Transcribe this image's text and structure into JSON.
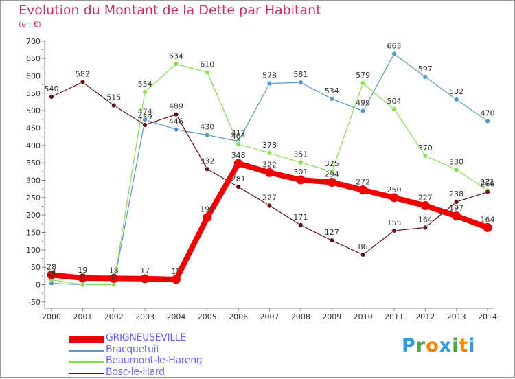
{
  "title": "Evolution du Montant de la Dette par Habitant",
  "subtitle": "(en €)",
  "logo": [
    "P",
    "r",
    "o",
    "x",
    "i",
    "t",
    "i"
  ],
  "logo_colors": [
    "#3399dd",
    "#44aa44",
    "#ee8800",
    "#3399dd",
    "#44aa44",
    "#ee8800",
    "#3399dd"
  ],
  "chart_data": {
    "type": "line",
    "x": [
      2000,
      2001,
      2002,
      2003,
      2004,
      2005,
      2006,
      2007,
      2008,
      2009,
      2010,
      2011,
      2012,
      2013,
      2014
    ],
    "ylim": [
      -50,
      700
    ],
    "yticks": [
      -50,
      0,
      50,
      100,
      150,
      200,
      250,
      300,
      350,
      400,
      450,
      500,
      550,
      600,
      650,
      700
    ],
    "grid": false,
    "legend_position": "bottom",
    "series": [
      {
        "name": "Bracquetuit",
        "color": "#5599cc",
        "values": [
          4,
          0,
          0,
          474,
          446,
          430,
          412,
          578,
          581,
          534,
          499,
          663,
          597,
          532,
          470
        ]
      },
      {
        "name": "Beaumont-le-Hareng",
        "color": "#88dd55",
        "values": [
          14,
          0,
          0,
          554,
          634,
          610,
          404,
          378,
          351,
          325,
          579,
          504,
          370,
          330,
          271
        ]
      },
      {
        "name": "Bosc-le-Hard",
        "color": "#661111",
        "values": [
          540,
          582,
          515,
          459,
          489,
          332,
          281,
          227,
          171,
          127,
          86,
          155,
          164,
          238,
          266
        ]
      },
      {
        "name": "GRIGNEUSEVILLE",
        "color": "#ee0000",
        "values": [
          28,
          19,
          18,
          17,
          15,
          193,
          348,
          322,
          301,
          294,
          272,
          250,
          227,
          197,
          164
        ]
      }
    ]
  }
}
